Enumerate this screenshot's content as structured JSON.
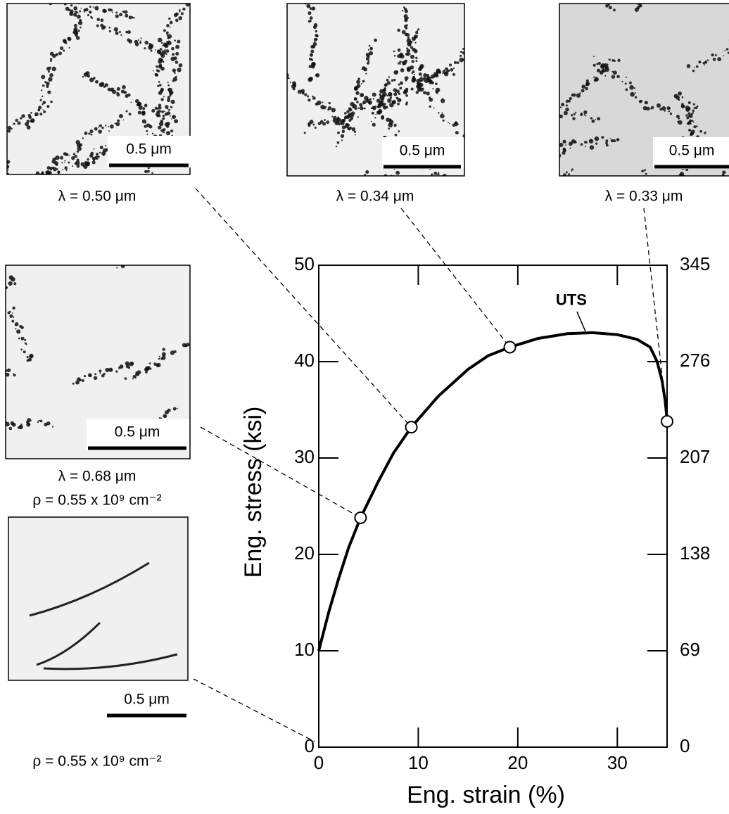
{
  "chart_data": {
    "type": "line",
    "xlabel": "Eng. strain (%)",
    "ylabel": "Eng. stress (ksi)",
    "x": [
      0,
      1,
      2,
      3,
      4.2,
      6,
      7.5,
      9.3,
      12,
      15,
      17,
      19.2,
      22,
      25,
      27.5,
      30,
      32,
      33.3,
      34,
      34.5,
      34.8,
      35
    ],
    "values": [
      10,
      14,
      17.5,
      20.7,
      23.8,
      27.6,
      30.5,
      33.2,
      36.4,
      39.2,
      40.6,
      41.5,
      42.4,
      42.9,
      43,
      42.8,
      42.3,
      41.5,
      40,
      38,
      36,
      34
    ],
    "color": "#000000",
    "markers": {
      "x": [
        4.2,
        9.3,
        19.2,
        35
      ],
      "values": [
        23.8,
        33.2,
        41.5,
        33.8
      ]
    },
    "xlim": [
      0,
      35
    ],
    "ylim": [
      0,
      50
    ],
    "y2lim": [
      0,
      345
    ],
    "xticks": [
      0,
      10,
      20,
      30
    ],
    "yticks": [
      0,
      10,
      20,
      30,
      40,
      50
    ],
    "y2ticks": [
      0,
      69,
      138,
      207,
      276,
      345
    ],
    "annotations": [
      "UTS"
    ]
  },
  "micrographs": [
    {
      "scale_label": "0.5 μm",
      "captions": [
        "λ = 0.50 μm"
      ]
    },
    {
      "scale_label": "0.5 μm",
      "captions": [
        "λ = 0.34 μm"
      ]
    },
    {
      "scale_label": "0.5 μm",
      "captions": [
        "λ = 0.33 μm"
      ]
    },
    {
      "scale_label": "0.5 μm",
      "captions": [
        "λ = 0.68 μm",
        "ρ = 0.55 x 10⁹ cm⁻²"
      ]
    },
    {
      "scale_label": "0.5 μm",
      "captions": [
        "ρ = 0.55 x 10⁹ cm⁻²"
      ]
    }
  ]
}
